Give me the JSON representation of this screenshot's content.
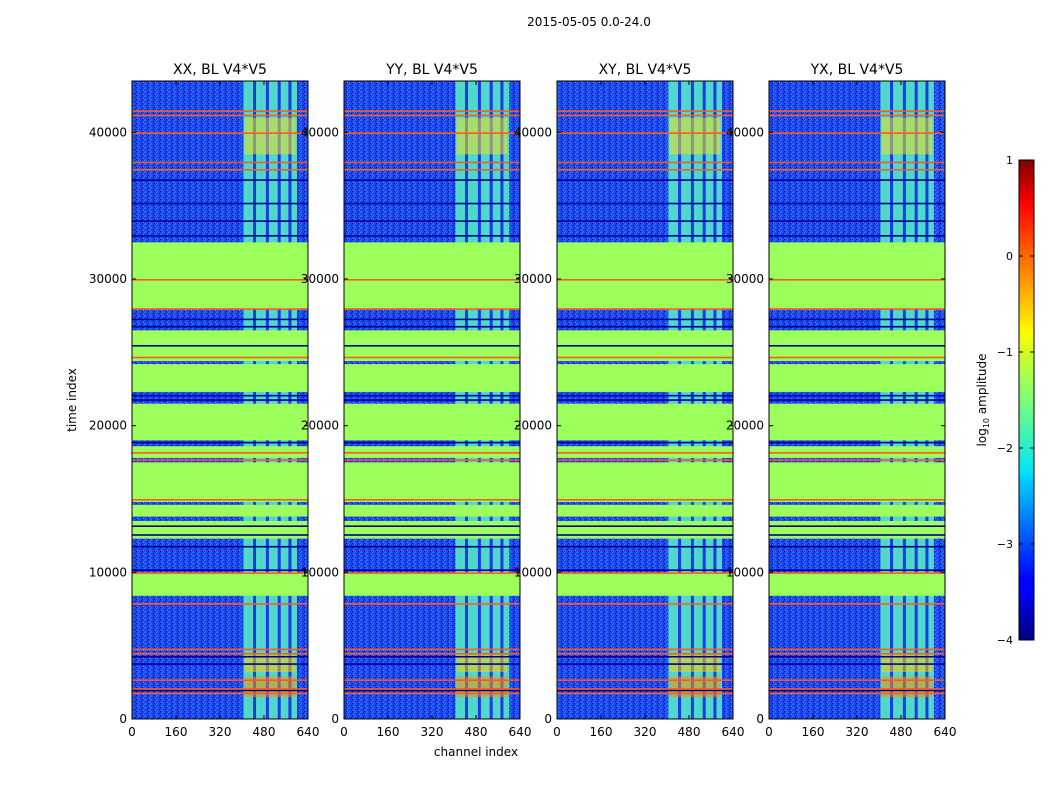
{
  "figure_title": "2015-05-05 0.0-24.0",
  "chart_data": [
    {
      "type": "heatmap",
      "title": "XX, BL V4*V5",
      "xlabel": "channel index",
      "ylabel": "time index",
      "xlim": [
        0,
        640
      ],
      "ylim": [
        0,
        43500
      ],
      "xticks": [
        0,
        160,
        320,
        480,
        640
      ],
      "yticks": [
        0,
        10000,
        20000,
        30000,
        40000
      ],
      "bright_channel_range": [
        405,
        600
      ]
    },
    {
      "type": "heatmap",
      "title": "YY, BL V4*V5",
      "xlabel": "channel index",
      "ylabel": "",
      "xlim": [
        0,
        640
      ],
      "ylim": [
        0,
        43500
      ],
      "xticks": [
        0,
        160,
        320,
        480,
        640
      ],
      "yticks": [
        0,
        10000,
        20000,
        30000,
        40000
      ],
      "bright_channel_range": [
        405,
        600
      ]
    },
    {
      "type": "heatmap",
      "title": "XY, BL V4*V5",
      "xlabel": "channel index",
      "ylabel": "",
      "xlim": [
        0,
        640
      ],
      "ylim": [
        0,
        43500
      ],
      "xticks": [
        0,
        160,
        320,
        480,
        640
      ],
      "yticks": [
        0,
        10000,
        20000,
        30000,
        40000
      ],
      "bright_channel_range": [
        405,
        600
      ]
    },
    {
      "type": "heatmap",
      "title": "YX, BL V4*V5",
      "xlabel": "channel index",
      "ylabel": "",
      "xlim": [
        0,
        640
      ],
      "ylim": [
        0,
        43500
      ],
      "xticks": [
        0,
        160,
        320,
        480,
        640
      ],
      "yticks": [
        0,
        10000,
        20000,
        30000,
        40000
      ],
      "bright_channel_range": [
        405,
        600
      ]
    }
  ],
  "colorbar": {
    "label": "log10 amplitude",
    "label_prefix": "log",
    "label_sub": "10",
    "label_suffix": " amplitude",
    "range": [
      -4,
      1
    ],
    "ticks": [
      1,
      0,
      -1,
      -2,
      -3,
      -4
    ],
    "tick_labels": [
      "1",
      "0",
      "−1",
      "−2",
      "−3",
      "−4"
    ],
    "colormap": "jet"
  },
  "green_bands": [
    [
      8400,
      10000
    ],
    [
      12300,
      13500
    ],
    [
      13800,
      14600
    ],
    [
      14800,
      17500
    ],
    [
      17800,
      18600
    ],
    [
      19000,
      21500
    ],
    [
      22300,
      24200
    ],
    [
      24400,
      26500
    ],
    [
      28000,
      32500
    ]
  ],
  "red_lines": [
    1800,
    2100,
    2700,
    4500,
    4800,
    7900,
    10000,
    15000,
    17700,
    18200,
    24700,
    28000,
    30000,
    37500,
    38000,
    40000,
    41500,
    41200
  ],
  "dark_lines": [
    2000,
    3800,
    4300,
    10200,
    11800,
    12600,
    13200,
    18900,
    21800,
    22100,
    25500,
    26800,
    27300,
    33000,
    34000,
    35200,
    36800
  ]
}
